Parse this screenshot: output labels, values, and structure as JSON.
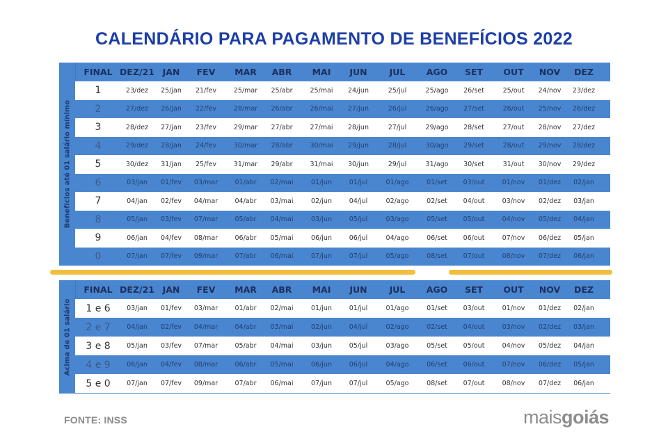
{
  "title": "CALENDÁRIO PARA PAGAMENTO DE BENEFÍCIOS 2022",
  "colors": {
    "title": "#1c3ea6",
    "table_blue": "#4a86cf",
    "divider_yellow": "#f2be3e",
    "footer_gray": "#8a8a8a"
  },
  "columns": [
    "FINAL",
    "DEZ/21",
    "JAN",
    "FEV",
    "MAR",
    "ABR",
    "MAI",
    "JUN",
    "JUL",
    "AGO",
    "SET",
    "OUT",
    "NOV",
    "DEZ"
  ],
  "table1": {
    "side_label": "Benefícios até 01 salário mínimo",
    "rows": [
      {
        "final": "1",
        "dates": [
          "23/dez",
          "25/jan",
          "21/fev",
          "25/mar",
          "25/abr",
          "25/mai",
          "24/jun",
          "25/jul",
          "25/ago",
          "26/set",
          "25/out",
          "24/nov",
          "23/dez"
        ]
      },
      {
        "final": "2",
        "dates": [
          "27/dez",
          "26/jan",
          "22/fev",
          "28/mar",
          "26/abr",
          "26/mai",
          "27/jun",
          "26/jul",
          "26/ago",
          "27/set",
          "26/out",
          "25/nov",
          "26/dez"
        ]
      },
      {
        "final": "3",
        "dates": [
          "28/dez",
          "27/jan",
          "23/fev",
          "29/mar",
          "27/abr",
          "27/mai",
          "28/jun",
          "27/jul",
          "29/ago",
          "28/set",
          "27/out",
          "28/nov",
          "27/dez"
        ]
      },
      {
        "final": "4",
        "dates": [
          "29/dez",
          "28/jan",
          "24/fev",
          "30/mar",
          "28/abr",
          "30/mai",
          "29/jun",
          "28/jul",
          "30/ago",
          "29/set",
          "28/out",
          "29/nov",
          "28/dez"
        ]
      },
      {
        "final": "5",
        "dates": [
          "30/dez",
          "31/jan",
          "25/fev",
          "31/mar",
          "29/abr",
          "31/mai",
          "30/jun",
          "29/jul",
          "31/ago",
          "30/set",
          "31/out",
          "30/nov",
          "29/dez"
        ]
      },
      {
        "final": "6",
        "dates": [
          "03/jan",
          "01/fev",
          "03/mar",
          "01/abr",
          "02/mai",
          "01/jun",
          "01/jul",
          "01/ago",
          "01/set",
          "03/out",
          "01/nov",
          "01/dez",
          "02/jan"
        ]
      },
      {
        "final": "7",
        "dates": [
          "04/jan",
          "02/fev",
          "04/mar",
          "04/abr",
          "03/mai",
          "02/jun",
          "04/jul",
          "02/ago",
          "02/set",
          "04/out",
          "03/nov",
          "02/dez",
          "03/jan"
        ]
      },
      {
        "final": "8",
        "dates": [
          "05/jan",
          "03/fev",
          "07/mar",
          "05/abr",
          "04/mai",
          "03/jun",
          "05/jul",
          "03/ago",
          "05/set",
          "05/out",
          "04/nov",
          "05/dez",
          "04/jan"
        ]
      },
      {
        "final": "9",
        "dates": [
          "06/jan",
          "04/fev",
          "08/mar",
          "06/abr",
          "05/mai",
          "06/jun",
          "06/jul",
          "04/ago",
          "06/set",
          "06/out",
          "07/nov",
          "06/dez",
          "05/jan"
        ]
      },
      {
        "final": "0",
        "dates": [
          "07/jan",
          "07/fev",
          "09/mar",
          "07/abr",
          "06/mai",
          "07/jun",
          "07/jul",
          "05/ago",
          "08/set",
          "07/out",
          "08/nov",
          "07/dez",
          "06/jan"
        ]
      }
    ]
  },
  "table2": {
    "side_label": "Acima de 01 salário",
    "rows": [
      {
        "final": "1 e 6",
        "dates": [
          "03/jan",
          "01/fev",
          "03/mar",
          "01/abr",
          "02/mai",
          "01/jun",
          "01/jul",
          "01/ago",
          "01/set",
          "03/out",
          "01/nov",
          "01/dez",
          "02/jan"
        ]
      },
      {
        "final": "2 e 7",
        "dates": [
          "04/jan",
          "02/fev",
          "04/mar",
          "04/abr",
          "03/mai",
          "02/jun",
          "04/jul",
          "02/ago",
          "02/set",
          "04/out",
          "03/nov",
          "02/dez",
          "03/jan"
        ]
      },
      {
        "final": "3 e 8",
        "dates": [
          "05/jan",
          "03/fev",
          "07/mar",
          "05/abr",
          "04/mai",
          "03/jun",
          "05/jul",
          "03/ago",
          "05/set",
          "05/out",
          "04/nov",
          "05/dez",
          "04/jan"
        ]
      },
      {
        "final": "4 e 9",
        "dates": [
          "06/jan",
          "04/fev",
          "08/mar",
          "06/abr",
          "05/mai",
          "06/jun",
          "06/jul",
          "04/ago",
          "06/set",
          "06/out",
          "07/nov",
          "06/dez",
          "05/jan"
        ]
      },
      {
        "final": "5 e 0",
        "dates": [
          "07/jan",
          "07/fev",
          "09/mar",
          "07/abr",
          "06/mai",
          "07/jun",
          "07/jul",
          "05/ago",
          "08/set",
          "07/out",
          "08/nov",
          "07/dez",
          "06/jan"
        ]
      }
    ]
  },
  "footer": {
    "source": "FONTE: INSS",
    "logo_light": "mais",
    "logo_bold": "goiás"
  }
}
